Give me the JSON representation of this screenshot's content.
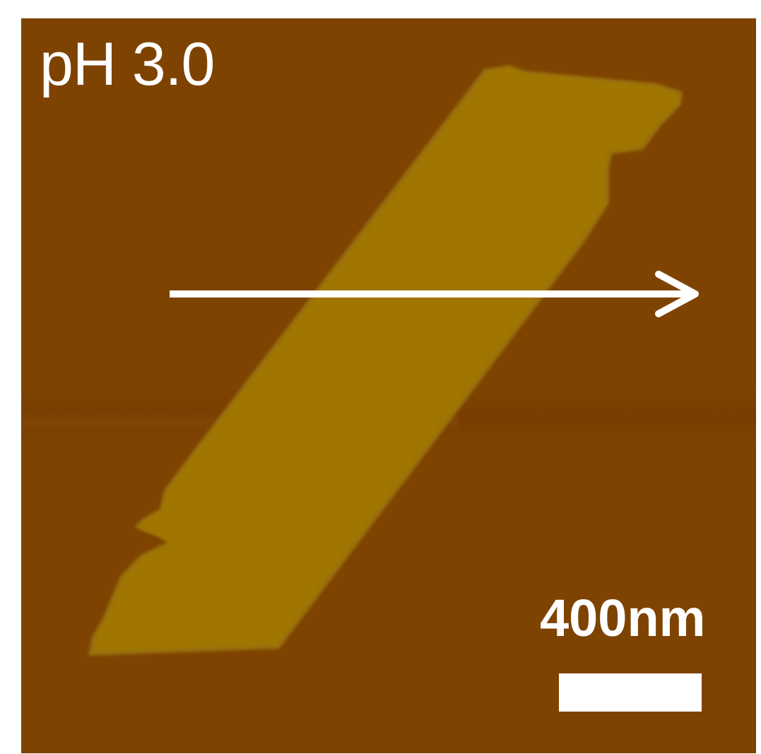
{
  "image": {
    "label": "pH 3.0",
    "scale_bar_label": "400nm"
  },
  "colors": {
    "substrate": "#7e4300",
    "flake": "#a07600",
    "annotation": "#ffffff"
  }
}
